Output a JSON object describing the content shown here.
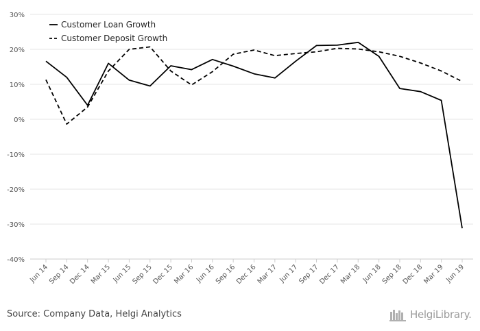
{
  "chart_data": {
    "type": "line",
    "title": "",
    "xlabel": "",
    "ylabel": "",
    "x": [
      "Jun 14",
      "Sep 14",
      "Dec 14",
      "Mar 15",
      "Jun 15",
      "Sep 15",
      "Dec 15",
      "Mar 16",
      "Jun 16",
      "Sep 16",
      "Dec 16",
      "Mar 17",
      "Jun 17",
      "Sep 17",
      "Dec 17",
      "Mar 18",
      "Jun 18",
      "Sep 18",
      "Dec 18",
      "Mar 19",
      "Jun 19"
    ],
    "ylim": [
      -40,
      30
    ],
    "yticks": [
      "30%",
      "20%",
      "10%",
      "0%",
      "-10%",
      "-20%",
      "-30%",
      "-40%"
    ],
    "ytick_values": [
      30,
      20,
      10,
      0,
      -10,
      -20,
      -30,
      -40
    ],
    "grid": true,
    "legend_position": "top-left",
    "series": [
      {
        "name": "Customer Loan Growth",
        "style": "solid",
        "color": "#000000",
        "values": [
          16.6,
          12.0,
          4.0,
          16.0,
          11.2,
          9.5,
          15.3,
          14.2,
          17.1,
          15.2,
          13.0,
          11.8,
          16.6,
          21.1,
          21.2,
          22.0,
          18.0,
          8.8,
          7.9,
          5.4,
          -31.2
        ]
      },
      {
        "name": "Customer Deposit Growth",
        "style": "dashed",
        "color": "#000000",
        "values": [
          11.3,
          -1.4,
          3.5,
          13.8,
          20.0,
          20.7,
          13.8,
          9.8,
          13.6,
          18.6,
          19.8,
          18.2,
          18.8,
          19.3,
          20.3,
          20.1,
          19.3,
          18.0,
          16.1,
          13.8,
          10.8
        ]
      }
    ]
  },
  "footer": {
    "source": "Source: Company Data, Helgi Analytics",
    "logo_text": "HelgiLibrary."
  }
}
